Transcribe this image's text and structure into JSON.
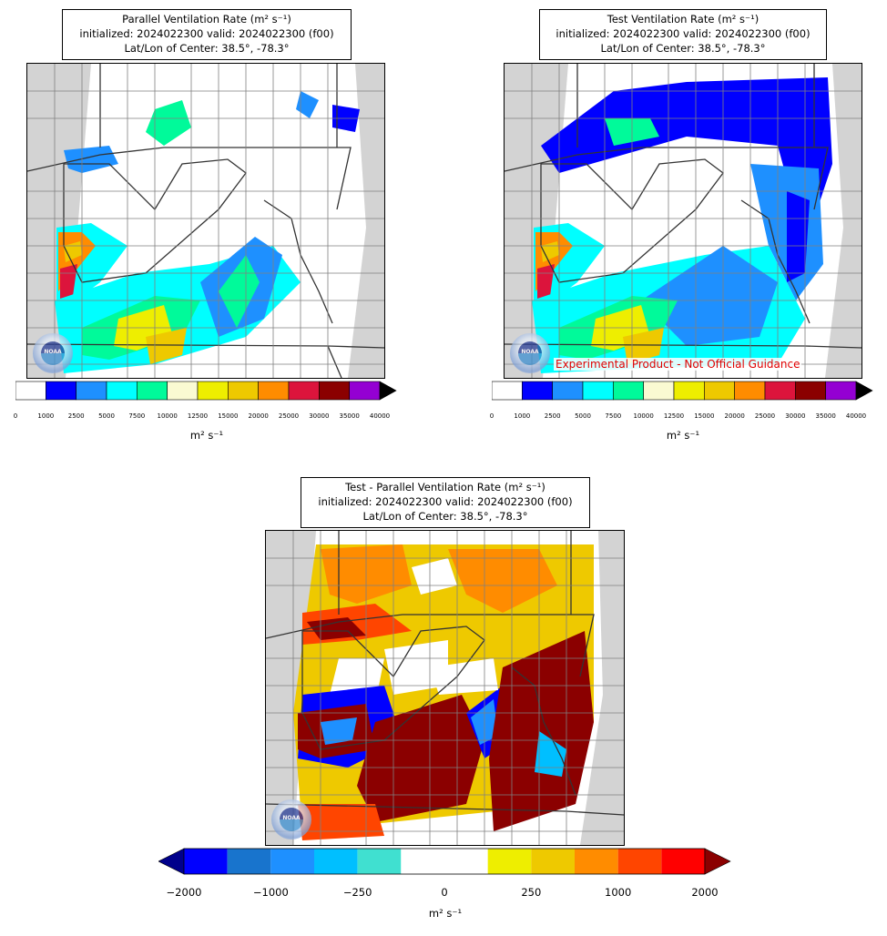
{
  "panels": [
    {
      "id": "parallel",
      "title_lines": [
        "Parallel Ventilation Rate (m² s⁻¹)",
        "initialized: 2024022300 valid: 2024022300 (f00)",
        "Lat/Lon of Center: 38.5°, -78.3°"
      ],
      "colorbar_unit": "m² s⁻¹"
    },
    {
      "id": "test",
      "title_lines": [
        "Test Ventilation Rate (m² s⁻¹)",
        "initialized: 2024022300 valid: 2024022300 (f00)",
        "Lat/Lon of Center: 38.5°, -78.3°"
      ],
      "colorbar_unit": "m² s⁻¹",
      "watermark": "Experimental Product - Not Official Guidance"
    },
    {
      "id": "difference",
      "title_lines": [
        "Test - Parallel Ventilation Rate (m² s⁻¹)",
        "initialized: 2024022300 valid: 2024022300 (f00)",
        "Lat/Lon of Center: 38.5°, -78.3°"
      ],
      "colorbar_unit": "m² s⁻¹"
    }
  ],
  "seal_text": "NOAA",
  "colorbar_rate": {
    "ticks": [
      "0",
      "1000",
      "2500",
      "5000",
      "7500",
      "10000",
      "12500",
      "15000",
      "20000",
      "25000",
      "30000",
      "35000",
      "40000"
    ],
    "colors": [
      "#ffffff",
      "#0000ff",
      "#1e90ff",
      "#00ffff",
      "#00fa9a",
      "#fafad2",
      "#eeee00",
      "#eec900",
      "#ff8c00",
      "#dc143c",
      "#8b0000",
      "#9400d3"
    ],
    "extend_color": "#000000"
  },
  "colorbar_diff": {
    "ticks": [
      "−2000",
      "−1000",
      "−250",
      "0",
      "250",
      "1000",
      "2000"
    ],
    "colors": [
      "#0000ff",
      "#1874cd",
      "#1e90ff",
      "#00bfff",
      "#40e0d0",
      "#ffffff",
      "#ffffff",
      "#eeee00",
      "#eec900",
      "#ff8c00",
      "#ff4500",
      "#ff0000"
    ],
    "extend_low": "#00008b",
    "extend_high": "#8b0000"
  }
}
